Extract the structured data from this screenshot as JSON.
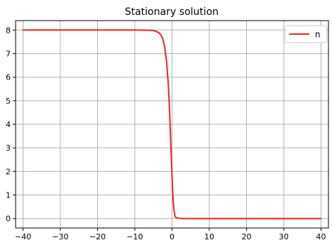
{
  "chart_data": {
    "type": "line",
    "title": "Stationary solution",
    "xlabel": "",
    "ylabel": "",
    "xlim": [
      -42,
      42
    ],
    "ylim": [
      -0.4,
      8.4
    ],
    "xticks": [
      -40,
      -30,
      -20,
      -10,
      0,
      10,
      20,
      30,
      40
    ],
    "yticks": [
      0,
      1,
      2,
      3,
      4,
      5,
      6,
      7,
      8
    ],
    "xtick_labels": [
      "−40",
      "−30",
      "−20",
      "−10",
      "0",
      "10",
      "20",
      "30",
      "40"
    ],
    "ytick_labels": [
      "0",
      "1",
      "2",
      "3",
      "4",
      "5",
      "6",
      "7",
      "8"
    ],
    "grid": true,
    "legend_position": "top-right",
    "series": [
      {
        "name": "n",
        "color": "#e8262a",
        "x": [
          -40,
          -30,
          -20,
          -10,
          -6,
          -5,
          -4,
          -3.5,
          -3,
          -2.5,
          -2,
          -1.5,
          -1,
          -0.75,
          -0.5,
          -0.25,
          0,
          0.25,
          0.5,
          0.75,
          1,
          1.5,
          2,
          3,
          5,
          10,
          20,
          30,
          40
        ],
        "y": [
          8,
          8,
          8,
          8,
          7.99,
          7.98,
          7.93,
          7.88,
          7.8,
          7.63,
          7.3,
          6.72,
          5.7,
          4.9,
          3.9,
          2.8,
          1.8,
          0.9,
          0.38,
          0.14,
          0.05,
          0.02,
          0.01,
          0,
          0,
          0,
          0,
          0,
          0
        ]
      }
    ]
  }
}
